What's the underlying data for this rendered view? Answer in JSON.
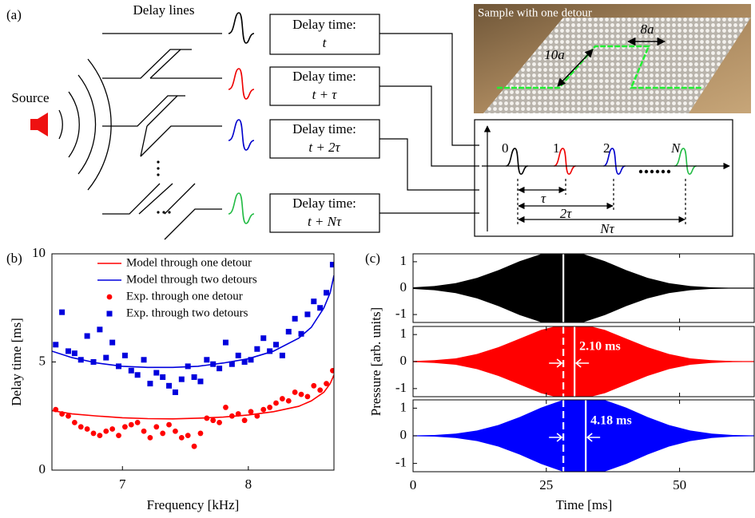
{
  "panel_a": {
    "label": "(a)",
    "delay_lines": "Delay lines",
    "source": "Source",
    "boxes": [
      {
        "title": "Delay time:",
        "value": "t"
      },
      {
        "title": "Delay time:",
        "value": "t + τ"
      },
      {
        "title": "Delay time:",
        "value": "t + 2τ"
      },
      {
        "title": "Delay time:",
        "value": "t + Nτ"
      }
    ],
    "photo": {
      "caption": "Sample with one detour",
      "width_label": "8a",
      "length_label": "10a"
    },
    "inset": {
      "pulse_labels": [
        "0",
        "1",
        "2",
        "N"
      ],
      "spacings": [
        "τ",
        "2τ",
        "Nτ"
      ]
    }
  },
  "chart_data": [
    {
      "type": "scatter",
      "panel_label": "(b)",
      "xlabel": "Frequency [kHz]",
      "ylabel": "Delay time [ms]",
      "xlim": [
        6.44,
        8.68
      ],
      "ylim": [
        0,
        10
      ],
      "xticks": [
        7,
        8
      ],
      "yticks": [
        0,
        5,
        10
      ],
      "legend": "upper-left",
      "series": [
        {
          "name": "Model through one detour",
          "color": "#ff0000",
          "marker": "line",
          "x": [
            6.44,
            6.6,
            6.8,
            7.0,
            7.2,
            7.4,
            7.6,
            7.8,
            8.0,
            8.2,
            8.4,
            8.5,
            8.6,
            8.65,
            8.68
          ],
          "values": [
            2.75,
            2.6,
            2.5,
            2.42,
            2.38,
            2.37,
            2.4,
            2.45,
            2.55,
            2.7,
            2.95,
            3.2,
            3.6,
            4.0,
            4.4
          ]
        },
        {
          "name": "Model through two detours",
          "color": "#0000dd",
          "marker": "line",
          "x": [
            6.44,
            6.6,
            6.8,
            7.0,
            7.2,
            7.4,
            7.6,
            7.8,
            8.0,
            8.2,
            8.4,
            8.5,
            8.6,
            8.65,
            8.68
          ],
          "values": [
            5.5,
            5.2,
            4.95,
            4.8,
            4.75,
            4.75,
            4.8,
            4.95,
            5.15,
            5.5,
            6.1,
            6.6,
            7.5,
            8.2,
            9.0
          ]
        },
        {
          "name": "Exp. through one detour",
          "color": "#ff0000",
          "marker": "circle",
          "x": [
            6.47,
            6.52,
            6.57,
            6.62,
            6.67,
            6.72,
            6.77,
            6.82,
            6.87,
            6.92,
            6.97,
            7.02,
            7.07,
            7.12,
            7.17,
            7.22,
            7.27,
            7.32,
            7.37,
            7.42,
            7.47,
            7.52,
            7.57,
            7.62,
            7.67,
            7.72,
            7.77,
            7.82,
            7.87,
            7.92,
            7.97,
            8.02,
            8.07,
            8.12,
            8.17,
            8.22,
            8.27,
            8.32,
            8.37,
            8.42,
            8.47,
            8.52,
            8.57,
            8.62,
            8.67
          ],
          "values": [
            2.8,
            2.6,
            2.5,
            2.2,
            2.0,
            1.9,
            1.7,
            1.6,
            1.8,
            1.9,
            1.6,
            2.0,
            2.1,
            2.2,
            1.8,
            1.5,
            2.0,
            1.7,
            2.1,
            1.8,
            1.5,
            1.6,
            1.1,
            1.7,
            2.4,
            2.3,
            2.2,
            2.9,
            2.5,
            2.6,
            2.3,
            2.7,
            2.5,
            2.8,
            2.9,
            3.1,
            3.3,
            3.2,
            3.6,
            3.5,
            3.4,
            3.9,
            3.7,
            4.0,
            4.6
          ]
        },
        {
          "name": "Exp. through two detours",
          "color": "#0000dd",
          "marker": "square",
          "x": [
            6.47,
            6.52,
            6.57,
            6.62,
            6.67,
            6.72,
            6.77,
            6.82,
            6.87,
            6.92,
            6.97,
            7.02,
            7.07,
            7.12,
            7.17,
            7.22,
            7.27,
            7.32,
            7.37,
            7.42,
            7.47,
            7.52,
            7.57,
            7.62,
            7.67,
            7.72,
            7.77,
            7.82,
            7.87,
            7.92,
            7.97,
            8.02,
            8.07,
            8.12,
            8.17,
            8.22,
            8.27,
            8.32,
            8.37,
            8.42,
            8.47,
            8.52,
            8.57,
            8.62,
            8.67
          ],
          "values": [
            5.8,
            7.3,
            5.5,
            5.4,
            5.1,
            6.2,
            5.0,
            6.5,
            5.2,
            5.9,
            4.8,
            5.3,
            4.6,
            4.4,
            5.1,
            4.0,
            4.5,
            4.3,
            3.9,
            3.6,
            4.2,
            4.8,
            4.3,
            4.1,
            5.1,
            4.9,
            4.7,
            5.9,
            4.9,
            5.3,
            5.0,
            5.1,
            5.6,
            6.1,
            5.5,
            5.8,
            5.3,
            6.4,
            7.0,
            6.3,
            7.2,
            7.8,
            7.5,
            8.2,
            9.5
          ]
        }
      ]
    },
    {
      "type": "area",
      "panel_label": "(c)",
      "xlim": [
        0,
        64
      ],
      "ylim": [
        -1.3,
        1.3
      ],
      "xticks": [
        0,
        25,
        50
      ],
      "yticks": [
        -1,
        0,
        1
      ],
      "x": [
        0,
        4,
        8,
        12,
        16,
        20,
        24,
        28,
        32,
        36,
        40,
        44,
        48,
        52,
        56,
        60,
        64
      ],
      "series": [
        {
          "color": "#000000",
          "values": [
            0.03,
            0.08,
            0.19,
            0.39,
            0.68,
            1.02,
            1.29,
            1.4,
            1.29,
            1.02,
            0.68,
            0.39,
            0.19,
            0.08,
            0.03,
            0.01,
            0.0
          ]
        }
      ],
      "vlines": [
        {
          "x": 28.2,
          "dash": false
        }
      ]
    },
    {
      "type": "area",
      "ylabel": "Pressure [arb. units]",
      "xlim": [
        0,
        64
      ],
      "ylim": [
        -1.3,
        1.3
      ],
      "xticks": [
        0,
        25,
        50
      ],
      "yticks": [
        -1,
        0,
        1
      ],
      "x": [
        0,
        4,
        8,
        12,
        16,
        20,
        24,
        28,
        32,
        36,
        40,
        44,
        48,
        52,
        56,
        60,
        64
      ],
      "series": [
        {
          "color": "#ff0000",
          "values": [
            0.02,
            0.05,
            0.12,
            0.28,
            0.53,
            0.85,
            1.17,
            1.37,
            1.37,
            1.17,
            0.85,
            0.53,
            0.28,
            0.12,
            0.05,
            0.02,
            0.01
          ]
        }
      ],
      "vlines": [
        {
          "x": 28.2,
          "dash": true
        },
        {
          "x": 30.3,
          "dash": false
        }
      ],
      "annotation": "2.10 ms"
    },
    {
      "type": "area",
      "xlabel": "Time [ms]",
      "xlim": [
        0,
        64
      ],
      "ylim": [
        -1.3,
        1.3
      ],
      "xticks": [
        0,
        25,
        50
      ],
      "yticks": [
        -1,
        0,
        1
      ],
      "x": [
        0,
        4,
        8,
        12,
        16,
        20,
        24,
        28,
        32,
        36,
        40,
        44,
        48,
        52,
        56,
        60,
        64
      ],
      "series": [
        {
          "color": "#0000ff",
          "values": [
            0.01,
            0.03,
            0.08,
            0.19,
            0.39,
            0.68,
            1.02,
            1.29,
            1.4,
            1.29,
            1.02,
            0.68,
            0.39,
            0.19,
            0.08,
            0.03,
            0.01
          ]
        }
      ],
      "vlines": [
        {
          "x": 28.2,
          "dash": true
        },
        {
          "x": 32.4,
          "dash": false
        }
      ],
      "annotation": "4.18 ms"
    }
  ]
}
